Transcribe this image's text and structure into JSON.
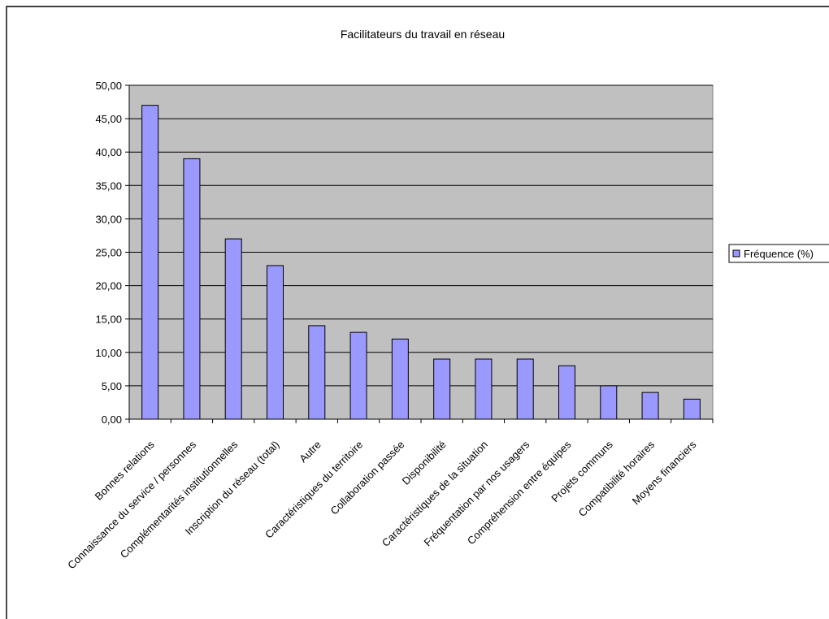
{
  "chart_data": {
    "type": "bar",
    "title": "Facilitateurs du travail en réseau",
    "xlabel": "",
    "ylabel": "",
    "ylim": [
      0,
      50
    ],
    "y_ticks": [
      "0,00",
      "5,00",
      "10,00",
      "15,00",
      "20,00",
      "25,00",
      "30,00",
      "35,00",
      "40,00",
      "45,00",
      "50,00"
    ],
    "grid": true,
    "legend_position": "right",
    "categories": [
      "Bonnes relations",
      "Connaissance du service / personnes",
      "Complémentarités institutionnelles",
      "Inscription du réseau (total)",
      "Autre",
      "Caractéristiques du territoire",
      "Collaboration passée",
      "Disponibilité",
      "Caractéristiques de la situation",
      "Fréquentation par nos usagers",
      "Compréhension entre équipes",
      "Projets communs",
      "Compatibilité horaires",
      "Moyens financiers"
    ],
    "series": [
      {
        "name": "Fréquence (%)",
        "values": [
          47,
          39,
          27,
          23,
          14,
          13,
          12,
          9,
          9,
          9,
          8,
          5,
          4,
          3
        ]
      }
    ],
    "colors": {
      "bar_fill": "#9999ff",
      "bar_stroke": "#000000",
      "plot_background": "#c0c0c0",
      "gridline": "#000000"
    }
  }
}
